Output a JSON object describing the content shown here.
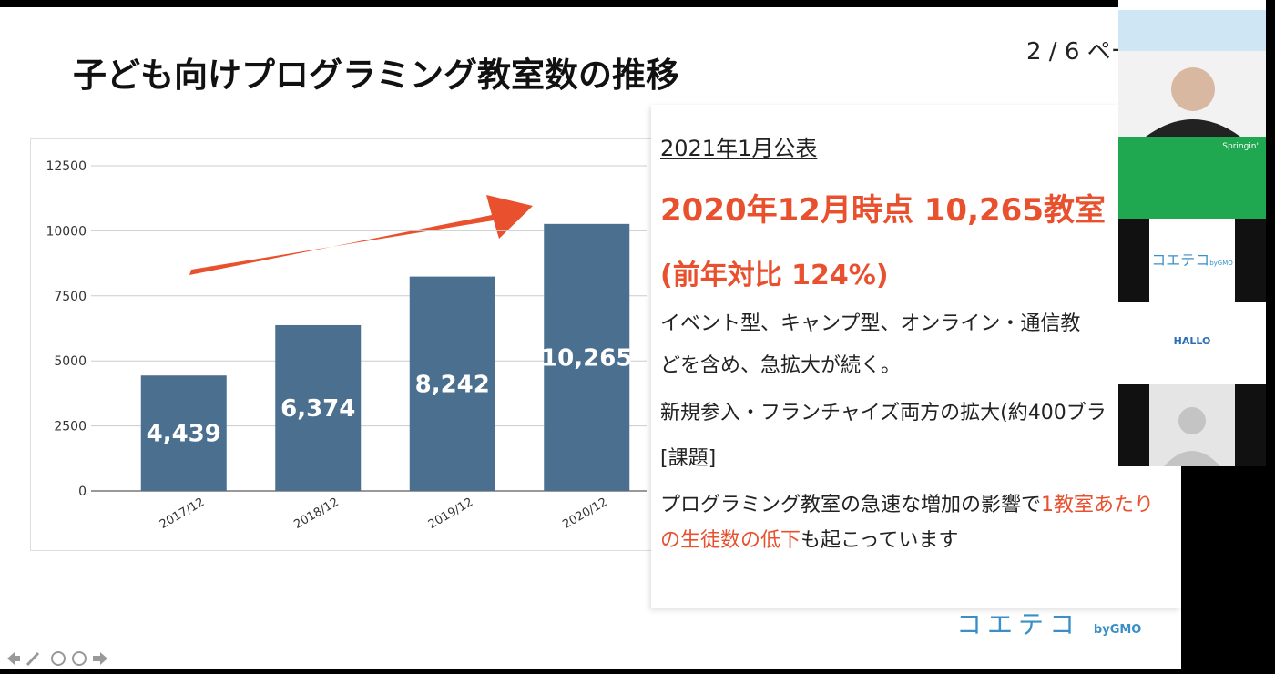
{
  "slide": {
    "title": "子ども向けプログラミング教室数の推移",
    "page": "2 / 6 ペー",
    "published": "2021年1月公表",
    "headline": "2020年12月時点 10,265教室",
    "yoy": "(前年対比 124%)",
    "line1": "イベント型、キャンプ型、オンライン・通信教",
    "line2": "どを含め、急拡大が続く。",
    "line3": "新規参入・フランチャイズ両方の拡大(約400ブラ",
    "task_heading": "[課題]",
    "task_text": [
      "プログラミング教室の急速な増加の影響で",
      "1教室あたりの生徒数の低下",
      "も起こっています"
    ],
    "logo": "コエテコ",
    "logo_by": "byGMO"
  },
  "participants": {
    "tile_label": "Springin'",
    "logo": "コエテコ",
    "logo_by": "byGMO",
    "hallo": "HALLO"
  },
  "chart_data": {
    "type": "bar",
    "categories": [
      "2017/12",
      "2018/12",
      "2019/12",
      "2020/12"
    ],
    "values": [
      4439,
      6374,
      8242,
      10265
    ],
    "value_labels": [
      "4,439",
      "6,374",
      "8,242",
      "10,265"
    ],
    "color": "#4a6f8f",
    "ylim": [
      0,
      12500
    ],
    "yticks": [
      0,
      2500,
      5000,
      7500,
      10000,
      12500
    ],
    "grid": true
  }
}
